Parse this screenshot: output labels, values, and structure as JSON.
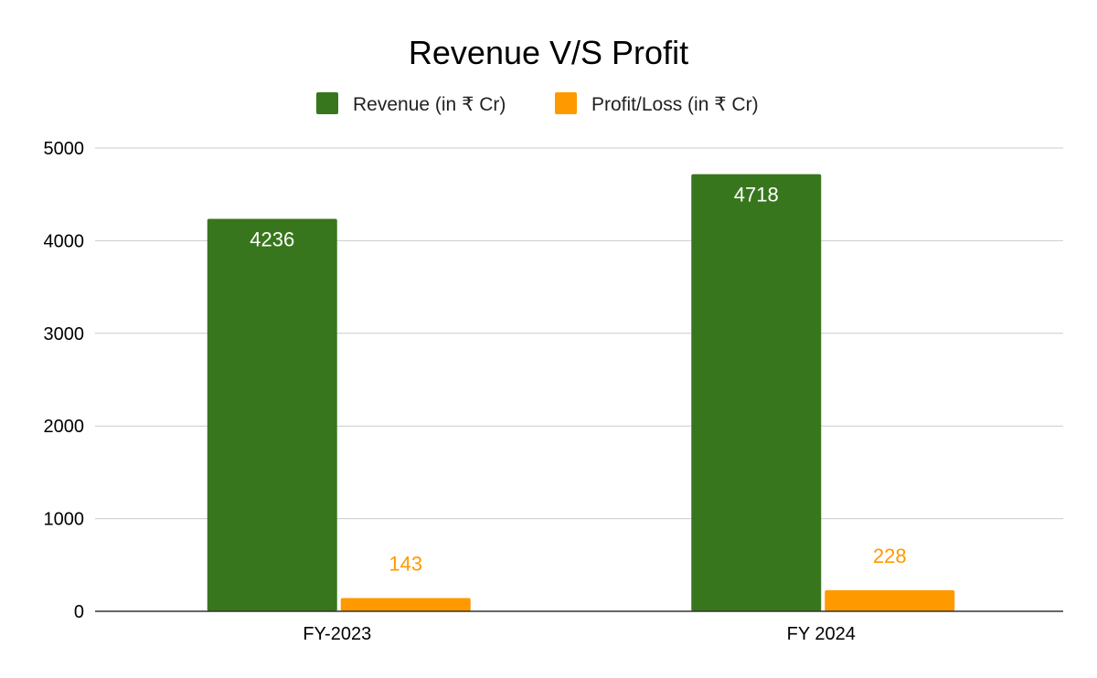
{
  "chart_data": {
    "type": "bar",
    "title": "Revenue V/S Profit",
    "categories": [
      "FY-2023",
      "FY 2024"
    ],
    "series": [
      {
        "name": "Revenue (in ₹ Cr)",
        "values": [
          4236,
          4718
        ],
        "color": "#38761d",
        "label_color": "#ffffff",
        "label_position": "inside-top"
      },
      {
        "name": "Profit/Loss (in ₹ Cr)",
        "values": [
          143,
          228
        ],
        "color": "#ff9900",
        "label_color": "#ff9900",
        "label_position": "above"
      }
    ],
    "xlabel": "",
    "ylabel": "",
    "ylim": [
      0,
      5000
    ],
    "yticks": [
      0,
      1000,
      2000,
      3000,
      4000,
      5000
    ],
    "grid": true,
    "legend": "top-center"
  }
}
